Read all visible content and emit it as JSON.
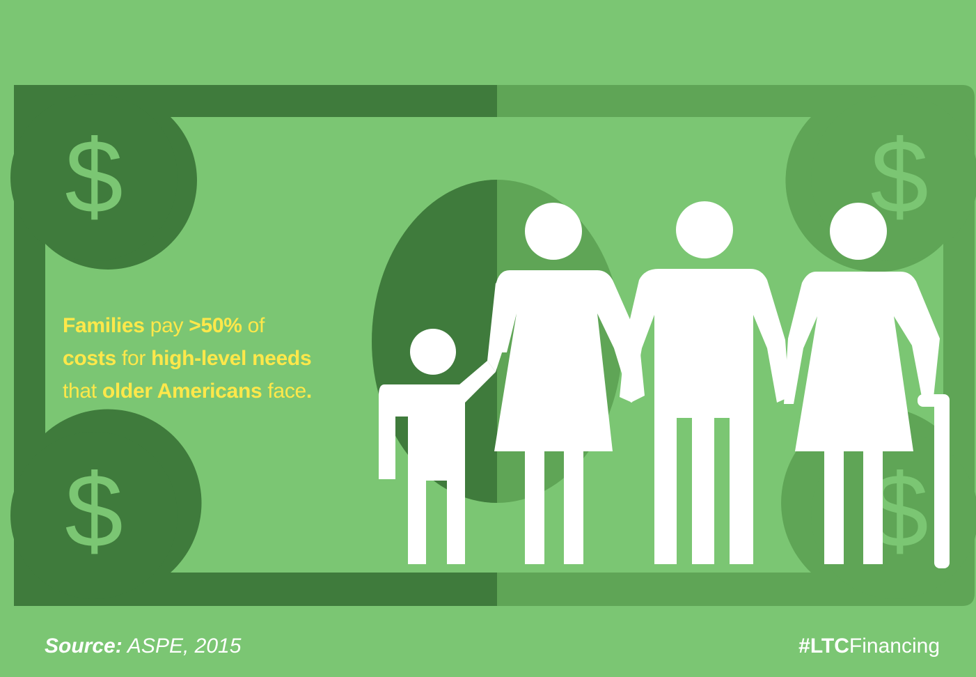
{
  "infographic": {
    "headline": {
      "line1": {
        "bold1": "Families",
        "light1": " pay ",
        "bold2": ">50%",
        "light2": " of"
      },
      "line2": {
        "bold1": "costs",
        "light1": " for ",
        "bold2": "high-level needs"
      },
      "line3": {
        "light1": "that ",
        "bold1": "older Americans",
        "light2": " face",
        "bold2": "."
      }
    },
    "bill": {
      "dollar_sign": "$"
    },
    "footer": {
      "source_label": "Source:",
      "source_value": " ASPE, 2015",
      "hashtag_bold": "#LTC",
      "hashtag_light": "Financing"
    }
  },
  "colors": {
    "background": "#7bc673",
    "bill_dark": "#3f7b3c",
    "bill_mid": "#5fa556",
    "headline": "#ffe84a",
    "figures": "#ffffff"
  },
  "icons": [
    "dollar-icon",
    "family-icon",
    "child-figure-icon",
    "woman-figure-icon",
    "man-figure-icon",
    "elderly-woman-figure-icon"
  ]
}
